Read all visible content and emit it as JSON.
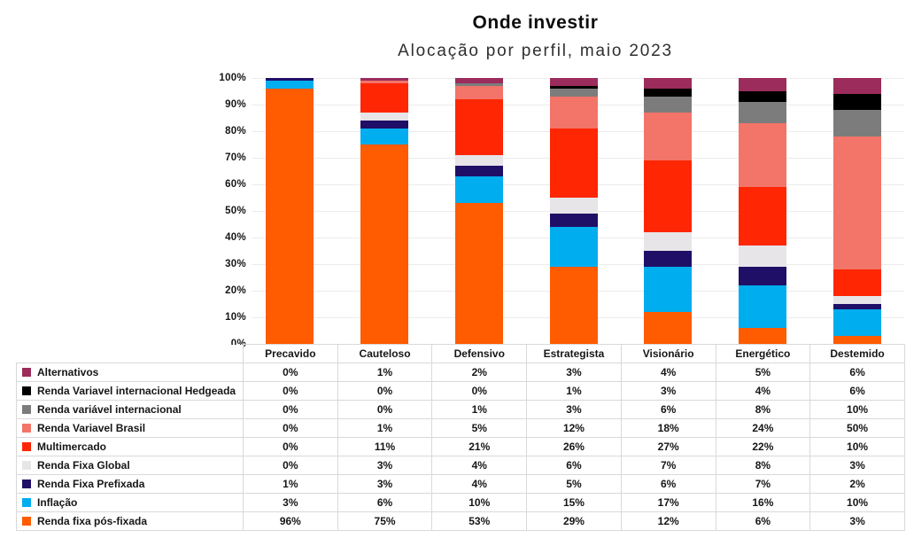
{
  "header": {
    "title": "Onde investir",
    "subtitle": "Alocação por perfil, maio 2023"
  },
  "chart_data": {
    "type": "bar",
    "stacked": true,
    "title": "Onde investir",
    "subtitle": "Alocação por perfil, maio 2023",
    "categories": [
      "Precavido",
      "Cauteloso",
      "Defensivo",
      "Estrategista",
      "Visionário",
      "Energético",
      "Destemido"
    ],
    "series": [
      {
        "name": "Alternativos",
        "color": "#9B2C5B",
        "values": [
          0,
          1,
          2,
          3,
          4,
          5,
          6
        ]
      },
      {
        "name": "Renda Variavel internacional Hedgeada",
        "color": "#000000",
        "values": [
          0,
          0,
          0,
          1,
          3,
          4,
          6
        ]
      },
      {
        "name": "Renda variável internacional",
        "color": "#7C7C7C",
        "values": [
          0,
          0,
          1,
          3,
          6,
          8,
          10
        ]
      },
      {
        "name": "Renda Variavel Brasil",
        "color": "#F37468",
        "values": [
          0,
          1,
          5,
          12,
          18,
          24,
          50
        ]
      },
      {
        "name": "Multimercado",
        "color": "#FF2603",
        "values": [
          0,
          11,
          21,
          26,
          27,
          22,
          10
        ]
      },
      {
        "name": "Renda Fixa Global",
        "color": "#E7E5E7",
        "values": [
          0,
          3,
          4,
          6,
          7,
          8,
          3
        ]
      },
      {
        "name": "Renda Fixa Prefixada",
        "color": "#200F66",
        "values": [
          1,
          3,
          4,
          5,
          6,
          7,
          2
        ]
      },
      {
        "name": "Inflação",
        "color": "#00ADEF",
        "values": [
          3,
          6,
          10,
          15,
          17,
          16,
          10
        ]
      },
      {
        "name": "Renda fixa pós-fixada",
        "color": "#FF5B00",
        "values": [
          96,
          75,
          53,
          29,
          12,
          6,
          3
        ]
      }
    ],
    "value_suffix": "%",
    "ylim": [
      0,
      100
    ],
    "ytick_step": 10,
    "ytick_labels": [
      "0%",
      "10%",
      "20%",
      "30%",
      "40%",
      "50%",
      "60%",
      "70%",
      "80%",
      "90%",
      "100%"
    ],
    "grid": true,
    "legend_position": "table-left",
    "colors": {
      "gridline": "#ececec",
      "table_border": "#d9d9d9",
      "text": "#161616"
    }
  }
}
